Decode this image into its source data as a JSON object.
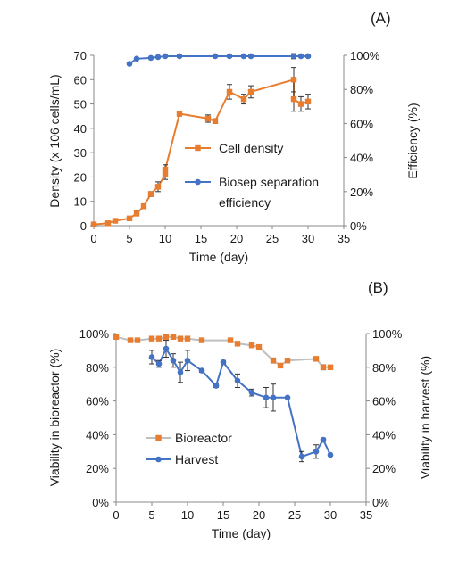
{
  "chart_data": [
    {
      "type": "line",
      "panel_label": "(A)",
      "xlabel": "Time (day)",
      "ylabel_left": "Density (x 106 cells/mL)",
      "ylabel_right": "Efficiency (%)",
      "xlim": [
        0,
        35
      ],
      "ylim_left": [
        0,
        70
      ],
      "ylim_right": [
        0,
        100
      ],
      "x_ticks": [
        "0",
        "5",
        "10",
        "15",
        "20",
        "25",
        "30",
        "35"
      ],
      "y_left_ticks": [
        "0",
        "10",
        "20",
        "30",
        "40",
        "50",
        "60",
        "70"
      ],
      "y_right_ticks": [
        "0%",
        "20%",
        "40%",
        "60%",
        "80%",
        "100%"
      ],
      "grid": false,
      "legend_position": "center-right",
      "series": [
        {
          "name": "Cell density",
          "axis": "left",
          "color": "#E87D2F",
          "marker": "square",
          "x": [
            0,
            2,
            3,
            5,
            6,
            7,
            8,
            9,
            10,
            10,
            12,
            16,
            17,
            19,
            21,
            22,
            28,
            28,
            29,
            30
          ],
          "y": [
            0.5,
            1,
            2,
            3,
            5,
            8,
            13,
            16,
            21,
            23,
            46,
            44,
            43,
            55,
            52,
            55,
            60,
            52,
            50,
            51
          ],
          "error": [
            0,
            0,
            0,
            0.5,
            1,
            1,
            1,
            2,
            2,
            2,
            1,
            1.5,
            1,
            3,
            2,
            2.5,
            5,
            5,
            3,
            3
          ]
        },
        {
          "name": "Biosep separation efficiency",
          "axis": "right",
          "color": "#4472C4",
          "marker": "circle",
          "x": [
            5,
            6,
            8,
            9,
            10,
            12,
            17,
            19,
            21,
            22,
            28,
            29,
            30
          ],
          "y": [
            95,
            98,
            98.5,
            99,
            99.5,
            99.5,
            99.5,
            99.5,
            99.5,
            99.5,
            99.5,
            99.5,
            99.5
          ],
          "error": [
            0,
            0,
            0,
            0,
            0,
            0,
            0,
            0,
            0,
            0,
            1.5,
            0,
            0
          ]
        }
      ]
    },
    {
      "type": "line",
      "panel_label": "(B)",
      "xlabel": "Time (day)",
      "ylabel_left": "Viability in bioreactor (%)",
      "ylabel_right": "Viability in harvest (%)",
      "xlim": [
        0,
        35
      ],
      "ylim_left": [
        0,
        100
      ],
      "ylim_right": [
        0,
        100
      ],
      "x_ticks": [
        "0",
        "5",
        "10",
        "15",
        "20",
        "25",
        "30",
        "35"
      ],
      "y_left_ticks": [
        "0%",
        "20%",
        "40%",
        "60%",
        "80%",
        "100%"
      ],
      "y_right_ticks": [
        "0%",
        "20%",
        "40%",
        "60%",
        "80%",
        "100%"
      ],
      "grid": false,
      "legend_position": "bottom-left",
      "series": [
        {
          "name": "Bioreactor",
          "axis": "left",
          "color": "#E87D2F",
          "line_color": "#BFBFBF",
          "marker": "square",
          "x": [
            0,
            2,
            3,
            5,
            6,
            7,
            8,
            9,
            10,
            12,
            16,
            17,
            19,
            20,
            22,
            23,
            24,
            28,
            29,
            30
          ],
          "y": [
            98,
            96,
            96,
            97,
            97,
            98,
            98,
            97,
            97,
            96,
            96,
            94,
            93,
            92,
            84,
            81,
            84,
            85,
            80,
            80
          ],
          "error": [
            0,
            0,
            0,
            0,
            0,
            0,
            0,
            0,
            0,
            0,
            0,
            0,
            1,
            0,
            1.5,
            0,
            0,
            0,
            1.5,
            0
          ]
        },
        {
          "name": "Harvest",
          "axis": "right",
          "color": "#4472C4",
          "marker": "circle",
          "x": [
            5,
            6,
            7,
            8,
            9,
            10,
            12,
            14,
            15,
            17,
            19,
            21,
            22,
            24,
            26,
            28,
            29,
            30
          ],
          "y": [
            86,
            82,
            91,
            84,
            77,
            84,
            78,
            69,
            83,
            72,
            65,
            62,
            62,
            62,
            27,
            30,
            37,
            28
          ],
          "error": [
            4,
            2,
            5,
            4,
            6,
            6,
            1,
            1,
            1,
            4,
            2,
            6,
            8,
            0,
            3,
            4,
            1,
            0
          ]
        }
      ]
    }
  ]
}
